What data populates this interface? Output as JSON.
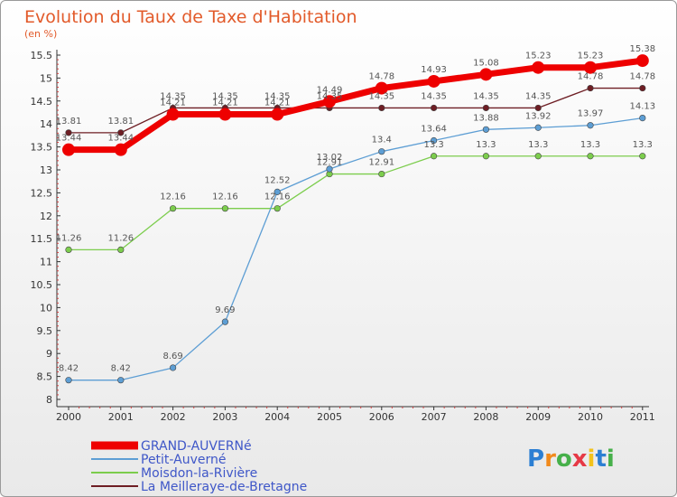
{
  "chart_data": {
    "type": "line",
    "title": "Evolution du Taux de Taxe d'Habitation",
    "subtitle": "(en %)",
    "x": [
      "2000",
      "2001",
      "2002",
      "2003",
      "2004",
      "2005",
      "2006",
      "2007",
      "2008",
      "2009",
      "2010",
      "2011"
    ],
    "ylim": [
      8,
      15.5
    ],
    "ystep": 0.5,
    "grid": false,
    "legend_position": "bottom-left",
    "series": [
      {
        "name": "La Meilleraye-de-Bretagne",
        "color": "#6e1e24",
        "width": 1.3,
        "radius": 3.3,
        "values": [
          13.81,
          13.81,
          14.35,
          14.35,
          14.35,
          14.35,
          14.35,
          14.35,
          14.35,
          14.35,
          14.78,
          14.78
        ]
      },
      {
        "name": "Moisdon-la-Rivière",
        "color": "#7ccd4d",
        "width": 1.3,
        "radius": 3.3,
        "values": [
          11.26,
          11.26,
          12.16,
          12.16,
          12.16,
          12.91,
          12.91,
          13.3,
          13.3,
          13.3,
          13.3,
          13.3
        ]
      },
      {
        "name": "Petit-Auverné",
        "color": "#5d9ed4",
        "width": 1.3,
        "radius": 3.3,
        "values": [
          8.42,
          8.42,
          8.69,
          9.69,
          12.52,
          13.02,
          13.4,
          13.64,
          13.88,
          13.92,
          13.97,
          14.13
        ]
      },
      {
        "name": "GRAND-AUVERNé",
        "color": "#ee0000",
        "width": 7,
        "radius": 7,
        "values": [
          13.44,
          13.44,
          14.21,
          14.21,
          14.21,
          14.49,
          14.78,
          14.93,
          15.08,
          15.23,
          15.23,
          15.38
        ]
      }
    ]
  },
  "legend": [
    {
      "label": "GRAND-AUVERNé",
      "color": "#ee0000",
      "thick": true
    },
    {
      "label": "Petit-Auverné",
      "color": "#5d9ed4",
      "thick": false
    },
    {
      "label": "Moisdon-la-Rivière",
      "color": "#7ccd4d",
      "thick": false
    },
    {
      "label": "La Meilleraye-de-Bretagne",
      "color": "#6e1e24",
      "thick": false
    }
  ],
  "logo": {
    "text": "Proxiti"
  }
}
